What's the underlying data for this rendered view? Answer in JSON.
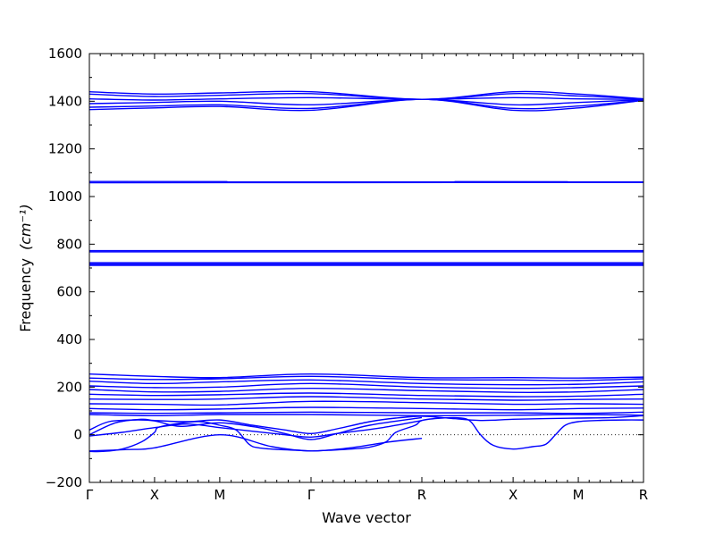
{
  "chart_data": {
    "type": "line",
    "xlabel": "Wave vector",
    "ylabel": "Frequency",
    "ylabel_unit": "(cm⁻¹)",
    "ylim": [
      -200,
      1600
    ],
    "yticks": [
      -200,
      0,
      200,
      400,
      600,
      800,
      1000,
      1200,
      1400,
      1600
    ],
    "xticks": [
      {
        "label": "Γ",
        "pos": 0.0
      },
      {
        "label": "X",
        "pos": 1.0
      },
      {
        "label": "M",
        "pos": 2.0
      },
      {
        "label": "Γ",
        "pos": 3.4
      },
      {
        "label": "R",
        "pos": 5.1
      },
      {
        "label": "X",
        "pos": 6.5
      },
      {
        "label": "M",
        "pos": 7.5
      },
      {
        "label": "R",
        "pos": 8.5
      }
    ],
    "xlim": [
      0,
      8.5
    ],
    "zero_line": {
      "y": 0,
      "style": "dotted"
    },
    "line_color": "#0000ff",
    "series": [
      {
        "x": [
          0,
          1,
          2,
          3.4,
          5.1,
          6.5,
          7.5,
          8.5
        ],
        "y": [
          1440,
          1430,
          1435,
          1440,
          1408,
          1440,
          1430,
          1410
        ]
      },
      {
        "x": [
          0,
          1,
          2,
          3.4,
          5.1,
          6.5,
          7.5,
          8.5
        ],
        "y": [
          1430,
          1420,
          1425,
          1432,
          1408,
          1432,
          1422,
          1410
        ]
      },
      {
        "x": [
          0,
          1,
          2,
          3.4,
          5.1,
          6.5,
          7.5,
          8.5
        ],
        "y": [
          1410,
          1405,
          1410,
          1415,
          1408,
          1415,
          1410,
          1408
        ]
      },
      {
        "x": [
          0,
          1,
          2,
          3.4,
          5.1,
          6.5,
          7.5,
          8.5
        ],
        "y": [
          1390,
          1395,
          1400,
          1385,
          1408,
          1385,
          1395,
          1406
        ]
      },
      {
        "x": [
          0,
          1,
          2,
          3.4,
          5.1,
          6.5,
          7.5,
          8.5
        ],
        "y": [
          1375,
          1380,
          1385,
          1370,
          1408,
          1370,
          1380,
          1405
        ]
      },
      {
        "x": [
          0,
          1,
          2,
          3.4,
          5.1,
          6.5,
          7.5,
          8.5
        ],
        "y": [
          1365,
          1372,
          1378,
          1362,
          1408,
          1362,
          1372,
          1404
        ]
      },
      {
        "x": [
          0,
          8.5
        ],
        "y": [
          1063,
          1062
        ]
      },
      {
        "x": [
          0,
          8.5
        ],
        "y": [
          1058,
          1059
        ]
      },
      {
        "x": [
          0,
          8.5
        ],
        "y": [
          773,
          773
        ]
      },
      {
        "x": [
          0,
          8.5
        ],
        "y": [
          768,
          768
        ]
      },
      {
        "x": [
          0,
          8.5
        ],
        "y": [
          722,
          722
        ]
      },
      {
        "x": [
          0,
          8.5
        ],
        "y": [
          716,
          716
        ]
      },
      {
        "x": [
          0,
          8.5
        ],
        "y": [
          711,
          711
        ]
      },
      {
        "x": [
          0,
          1,
          2,
          3.4,
          5.1,
          6.5,
          7.5,
          8.5
        ],
        "y": [
          255,
          245,
          240,
          255,
          240,
          240,
          238,
          242
        ]
      },
      {
        "x": [
          0,
          1,
          2,
          3.4,
          5.1,
          6.5,
          7.5,
          8.5
        ],
        "y": [
          238,
          232,
          235,
          245,
          232,
          230,
          228,
          235
        ]
      },
      {
        "x": [
          0,
          1,
          2,
          3.4,
          5.1,
          6.5,
          7.5,
          8.5
        ],
        "y": [
          225,
          215,
          222,
          230,
          215,
          210,
          212,
          222
        ]
      },
      {
        "x": [
          0,
          1,
          2,
          3.4,
          5.1,
          6.5,
          7.5,
          8.5
        ],
        "y": [
          205,
          198,
          200,
          215,
          200,
          195,
          198,
          205
        ]
      },
      {
        "x": [
          0,
          1,
          2,
          3.4,
          5.1,
          6.5,
          7.5,
          8.5
        ],
        "y": [
          190,
          180,
          182,
          195,
          185,
          178,
          180,
          190
        ]
      },
      {
        "x": [
          0,
          1,
          2,
          3.4,
          5.1,
          6.5,
          7.5,
          8.5
        ],
        "y": [
          170,
          165,
          168,
          175,
          165,
          160,
          162,
          170
        ]
      },
      {
        "x": [
          0,
          1,
          2,
          3.4,
          5.1,
          6.5,
          7.5,
          8.5
        ],
        "y": [
          150,
          148,
          150,
          160,
          150,
          145,
          148,
          150
        ]
      },
      {
        "x": [
          0,
          1,
          2,
          3.4,
          5.1,
          6.5,
          7.5,
          8.5
        ],
        "y": [
          130,
          128,
          125,
          140,
          135,
          128,
          130,
          128
        ]
      },
      {
        "x": [
          0,
          1,
          2,
          3.4,
          5.1,
          6.5,
          7.5,
          8.5
        ],
        "y": [
          110,
          105,
          108,
          115,
          110,
          105,
          110,
          112
        ]
      },
      {
        "x": [
          0,
          1,
          2,
          3.4,
          5.1,
          6.5,
          7.5,
          8.5
        ],
        "y": [
          92,
          90,
          92,
          95,
          92,
          92,
          90,
          95
        ]
      },
      {
        "x": [
          0,
          1,
          2,
          3.4,
          5.1,
          6.5,
          7.5,
          8.5
        ],
        "y": [
          85,
          80,
          85,
          85,
          80,
          82,
          85,
          82
        ]
      },
      {
        "x": [
          0,
          0.4,
          0.8,
          1,
          1.5,
          2,
          2.5,
          3,
          3.4,
          3.8,
          4.3,
          4.7,
          5.1,
          5.5,
          6,
          6.5,
          7,
          7.5,
          8,
          8.5
        ],
        "y": [
          0,
          50,
          65,
          60,
          55,
          62,
          40,
          20,
          5,
          25,
          55,
          70,
          78,
          70,
          60,
          65,
          68,
          70,
          72,
          80
        ]
      },
      {
        "x": [
          0,
          0.3,
          0.7,
          1,
          1.4,
          2,
          2.6,
          3,
          3.4,
          3.8,
          4.3,
          5.1
        ],
        "y": [
          20,
          55,
          62,
          58,
          35,
          50,
          30,
          5,
          -20,
          5,
          40,
          72
        ]
      },
      {
        "x": [
          0,
          0.5,
          1,
          1.5,
          2,
          2.5,
          3,
          3.4,
          3.8,
          4.5,
          5.1
        ],
        "y": [
          -5,
          10,
          30,
          45,
          30,
          15,
          0,
          -10,
          5,
          30,
          60
        ]
      },
      {
        "x": [
          0,
          0.6,
          1,
          2,
          2.8,
          3.4,
          4,
          4.6,
          5.1
        ],
        "y": [
          -68,
          -62,
          -55,
          0,
          -50,
          -68,
          -55,
          -30,
          -15
        ]
      },
      {
        "x": [
          0,
          0.2,
          0.5,
          0.8,
          1,
          1.05,
          1.3,
          1.7,
          2,
          2.25,
          2.45,
          2.6,
          2.9,
          3.2,
          3.4,
          3.7,
          4,
          4.3,
          4.55,
          4.7,
          5.0,
          5.1,
          5.4,
          5.7,
          5.85,
          6.0,
          6.2,
          6.5,
          6.8,
          7.0,
          7.15,
          7.3,
          7.5,
          7.8,
          8.2,
          8.5
        ],
        "y": [
          -70,
          -70,
          -60,
          -30,
          10,
          30,
          45,
          55,
          40,
          20,
          -40,
          -55,
          -62,
          -65,
          -68,
          -65,
          -60,
          -52,
          -30,
          10,
          40,
          60,
          70,
          70,
          55,
          0,
          -45,
          -60,
          -50,
          -40,
          0,
          40,
          55,
          60,
          62,
          62
        ]
      }
    ]
  }
}
